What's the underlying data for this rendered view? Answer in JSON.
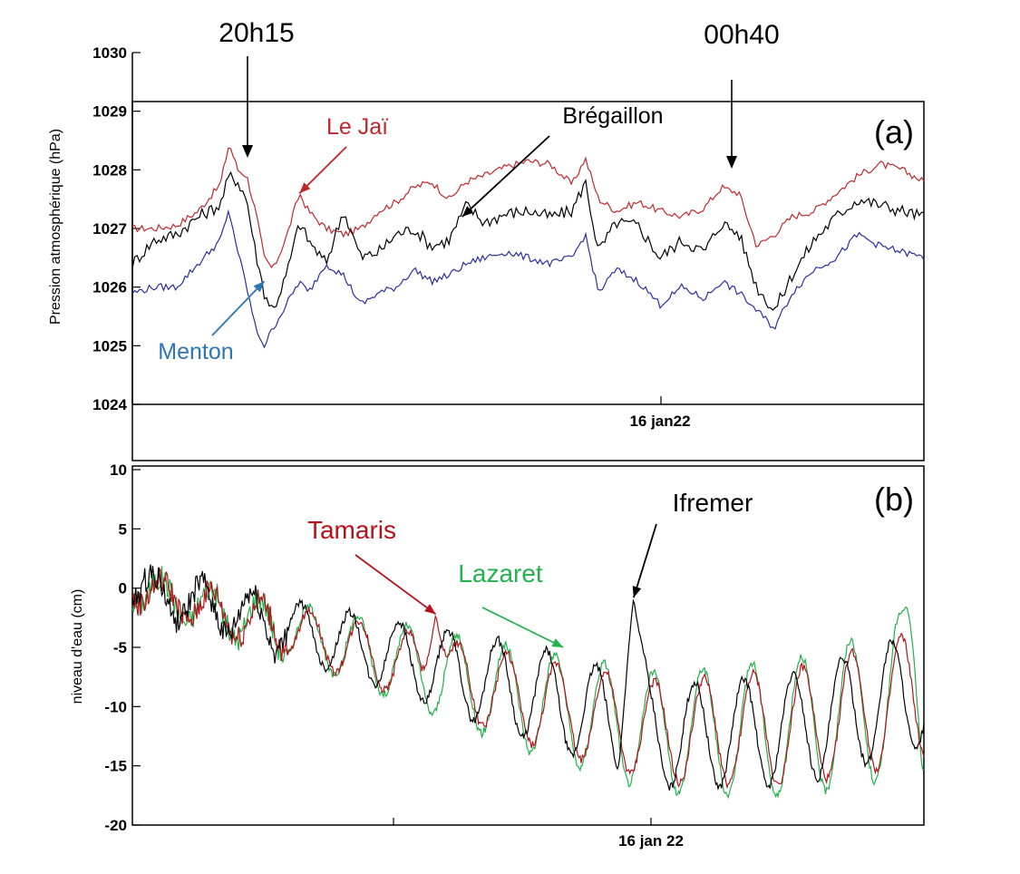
{
  "annotations": {
    "time_a": "20h15",
    "time_b": "00h40"
  },
  "chart_data": [
    {
      "type": "line",
      "panel_label": "(a)",
      "ylabel": "Pression atmosphérique (hPa)",
      "xlabel": "",
      "xtick_label": "16 jan22",
      "ylim": [
        1024,
        1030
      ],
      "yticks": [
        1024,
        1025,
        1026,
        1027,
        1028,
        1029,
        1030
      ],
      "x_range_hours": [
        -6,
        12
      ],
      "grid": false,
      "colors": {
        "Le Jaï": "#c0282d",
        "Brégaillon": "#000000",
        "Menton": "#2b2f9e"
      },
      "series": [
        {
          "name": "Le Jaï",
          "points": [
            [
              -6,
              1027.0
            ],
            [
              -5.5,
              1027.0
            ],
            [
              -5,
              1027.05
            ],
            [
              -4.5,
              1027.3
            ],
            [
              -4,
              1027.75
            ],
            [
              -3.8,
              1028.45
            ],
            [
              -3.6,
              1028.0
            ],
            [
              -3.4,
              1027.9
            ],
            [
              -3.2,
              1027.3
            ],
            [
              -3.0,
              1026.5
            ],
            [
              -2.8,
              1026.3
            ],
            [
              -2.5,
              1026.85
            ],
            [
              -2.2,
              1027.6
            ],
            [
              -2.0,
              1027.3
            ],
            [
              -1.6,
              1027.0
            ],
            [
              -1.2,
              1026.9
            ],
            [
              -0.8,
              1027.0
            ],
            [
              -0.4,
              1027.3
            ],
            [
              0,
              1027.45
            ],
            [
              0.4,
              1027.7
            ],
            [
              0.8,
              1027.8
            ],
            [
              1.2,
              1027.5
            ],
            [
              1.6,
              1027.8
            ],
            [
              2.0,
              1027.9
            ],
            [
              2.5,
              1028.05
            ],
            [
              3.0,
              1028.15
            ],
            [
              3.5,
              1028.1
            ],
            [
              4.0,
              1027.75
            ],
            [
              4.3,
              1028.2
            ],
            [
              4.6,
              1027.5
            ],
            [
              5.0,
              1027.3
            ],
            [
              5.5,
              1027.45
            ],
            [
              6.0,
              1027.3
            ],
            [
              6.5,
              1027.2
            ],
            [
              7.0,
              1027.35
            ],
            [
              7.4,
              1027.7
            ],
            [
              7.8,
              1027.6
            ],
            [
              8.2,
              1026.7
            ],
            [
              8.6,
              1026.9
            ],
            [
              9.0,
              1027.2
            ],
            [
              9.5,
              1027.3
            ],
            [
              10.0,
              1027.6
            ],
            [
              10.5,
              1027.9
            ],
            [
              11.0,
              1028.1
            ],
            [
              11.5,
              1028.0
            ],
            [
              12.0,
              1027.8
            ]
          ]
        },
        {
          "name": "Brégaillon",
          "points": [
            [
              -6,
              1026.4
            ],
            [
              -5.5,
              1026.8
            ],
            [
              -5,
              1026.9
            ],
            [
              -4.5,
              1027.2
            ],
            [
              -4,
              1027.4
            ],
            [
              -3.8,
              1027.9
            ],
            [
              -3.6,
              1027.8
            ],
            [
              -3.4,
              1027.5
            ],
            [
              -3.2,
              1026.6
            ],
            [
              -3.0,
              1025.9
            ],
            [
              -2.8,
              1025.6
            ],
            [
              -2.5,
              1026.2
            ],
            [
              -2.2,
              1027.1
            ],
            [
              -2.0,
              1026.8
            ],
            [
              -1.6,
              1026.4
            ],
            [
              -1.2,
              1027.3
            ],
            [
              -0.8,
              1026.5
            ],
            [
              -0.4,
              1026.6
            ],
            [
              0,
              1026.9
            ],
            [
              0.4,
              1027.0
            ],
            [
              0.8,
              1026.7
            ],
            [
              1.2,
              1026.8
            ],
            [
              1.6,
              1027.4
            ],
            [
              2.0,
              1027.1
            ],
            [
              2.5,
              1027.25
            ],
            [
              3.0,
              1027.3
            ],
            [
              3.5,
              1027.2
            ],
            [
              4.0,
              1027.3
            ],
            [
              4.3,
              1027.8
            ],
            [
              4.6,
              1026.6
            ],
            [
              5.0,
              1027.1
            ],
            [
              5.5,
              1027.05
            ],
            [
              6.0,
              1026.5
            ],
            [
              6.5,
              1026.8
            ],
            [
              7.0,
              1026.6
            ],
            [
              7.4,
              1027.1
            ],
            [
              7.8,
              1026.9
            ],
            [
              8.2,
              1026.0
            ],
            [
              8.6,
              1025.6
            ],
            [
              9.0,
              1026.2
            ],
            [
              9.5,
              1026.8
            ],
            [
              10.0,
              1027.2
            ],
            [
              10.5,
              1027.5
            ],
            [
              11.0,
              1027.4
            ],
            [
              11.5,
              1027.3
            ],
            [
              12.0,
              1027.2
            ]
          ]
        },
        {
          "name": "Menton",
          "points": [
            [
              -6,
              1025.9
            ],
            [
              -5.5,
              1026.0
            ],
            [
              -5,
              1026.0
            ],
            [
              -4.5,
              1026.4
            ],
            [
              -4,
              1026.8
            ],
            [
              -3.8,
              1027.3
            ],
            [
              -3.6,
              1026.6
            ],
            [
              -3.4,
              1026.0
            ],
            [
              -3.2,
              1025.3
            ],
            [
              -3.0,
              1025.0
            ],
            [
              -2.8,
              1025.3
            ],
            [
              -2.5,
              1025.7
            ],
            [
              -2.2,
              1026.1
            ],
            [
              -2.0,
              1025.9
            ],
            [
              -1.6,
              1026.4
            ],
            [
              -1.2,
              1026.2
            ],
            [
              -0.8,
              1025.7
            ],
            [
              -0.4,
              1025.9
            ],
            [
              0,
              1026.0
            ],
            [
              0.4,
              1026.3
            ],
            [
              0.8,
              1026.1
            ],
            [
              1.2,
              1026.2
            ],
            [
              1.6,
              1026.4
            ],
            [
              2.0,
              1026.5
            ],
            [
              2.5,
              1026.6
            ],
            [
              3.0,
              1026.5
            ],
            [
              3.5,
              1026.4
            ],
            [
              4.0,
              1026.5
            ],
            [
              4.3,
              1026.9
            ],
            [
              4.6,
              1025.9
            ],
            [
              5.0,
              1026.3
            ],
            [
              5.5,
              1026.1
            ],
            [
              6.0,
              1025.7
            ],
            [
              6.5,
              1026.0
            ],
            [
              7.0,
              1025.8
            ],
            [
              7.4,
              1026.1
            ],
            [
              7.8,
              1025.9
            ],
            [
              8.2,
              1025.6
            ],
            [
              8.6,
              1025.3
            ],
            [
              9.0,
              1025.9
            ],
            [
              9.5,
              1026.3
            ],
            [
              10.0,
              1026.5
            ],
            [
              10.5,
              1026.9
            ],
            [
              11.0,
              1026.7
            ],
            [
              11.5,
              1026.6
            ],
            [
              12.0,
              1026.5
            ]
          ]
        }
      ],
      "labels": [
        {
          "text": "Le Jaï",
          "target": [
            -2.2,
            1027.6
          ]
        },
        {
          "text": "Brégaillon",
          "target": [
            1.5,
            1027.2
          ]
        },
        {
          "text": "Menton",
          "target": [
            -3.0,
            1026.1
          ]
        }
      ]
    },
    {
      "type": "line",
      "panel_label": "(b)",
      "ylabel": "niveau d'eau (cm)",
      "xlabel": "",
      "xtick_label": "16 jan 22",
      "ylim": [
        -20,
        10
      ],
      "yticks": [
        -20,
        -15,
        -10,
        -5,
        0,
        5,
        10
      ],
      "x_range_hours": [
        -6,
        12
      ],
      "grid": false,
      "colors": {
        "Tamaris": "#b5121b",
        "Lazaret": "#22b14c",
        "Ifremer": "#000000"
      },
      "series": [
        {
          "name": "Ifremer",
          "trend": {
            "hour": [
              -6,
              -3,
              0,
              3,
              6,
              9,
              12
            ],
            "cm": [
              0,
              -2.8,
              -5.8,
              -8.8,
              -12.5,
              -12.0,
              -8.5
            ]
          },
          "oscillation": {
            "period_h": 1.12,
            "amplitude_cm": [
              1.6,
              2.4,
              4.0,
              5.0
            ],
            "phase": 1.2
          },
          "peak": {
            "hour": 5.4,
            "cm": -0.8
          }
        },
        {
          "name": "Tamaris",
          "trend": {
            "hour": [
              -6,
              -3,
              0,
              3,
              6,
              9,
              12
            ],
            "cm": [
              0,
              -3.0,
              -6.2,
              -9.5,
              -12.2,
              -11.8,
              -9.0
            ]
          },
          "oscillation": {
            "period_h": 1.12,
            "amplitude_cm": [
              1.2,
              2.2,
              3.6,
              5.5
            ],
            "phase": 0
          },
          "peak": {
            "hour": 0.9,
            "cm": -2.2
          }
        },
        {
          "name": "Lazaret",
          "trend": {
            "hour": [
              -6,
              -3,
              0,
              3,
              6,
              9,
              12
            ],
            "cm": [
              0,
              -3.0,
              -6.2,
              -9.5,
              -12.2,
              -11.8,
              -9.0
            ]
          },
          "oscillation": {
            "period_h": 1.12,
            "amplitude_cm": [
              1.3,
              2.5,
              4.3,
              6.6
            ],
            "phase": 0.15
          },
          "peak": {
            "hour": 11.6,
            "cm": -1.5
          }
        }
      ],
      "labels": [
        {
          "text": "Tamaris",
          "target": [
            0.9,
            -2.2
          ]
        },
        {
          "text": "Lazaret",
          "target": [
            3.8,
            -5.0
          ]
        },
        {
          "text": "Ifremer",
          "target": [
            5.4,
            -0.8
          ]
        }
      ]
    }
  ]
}
